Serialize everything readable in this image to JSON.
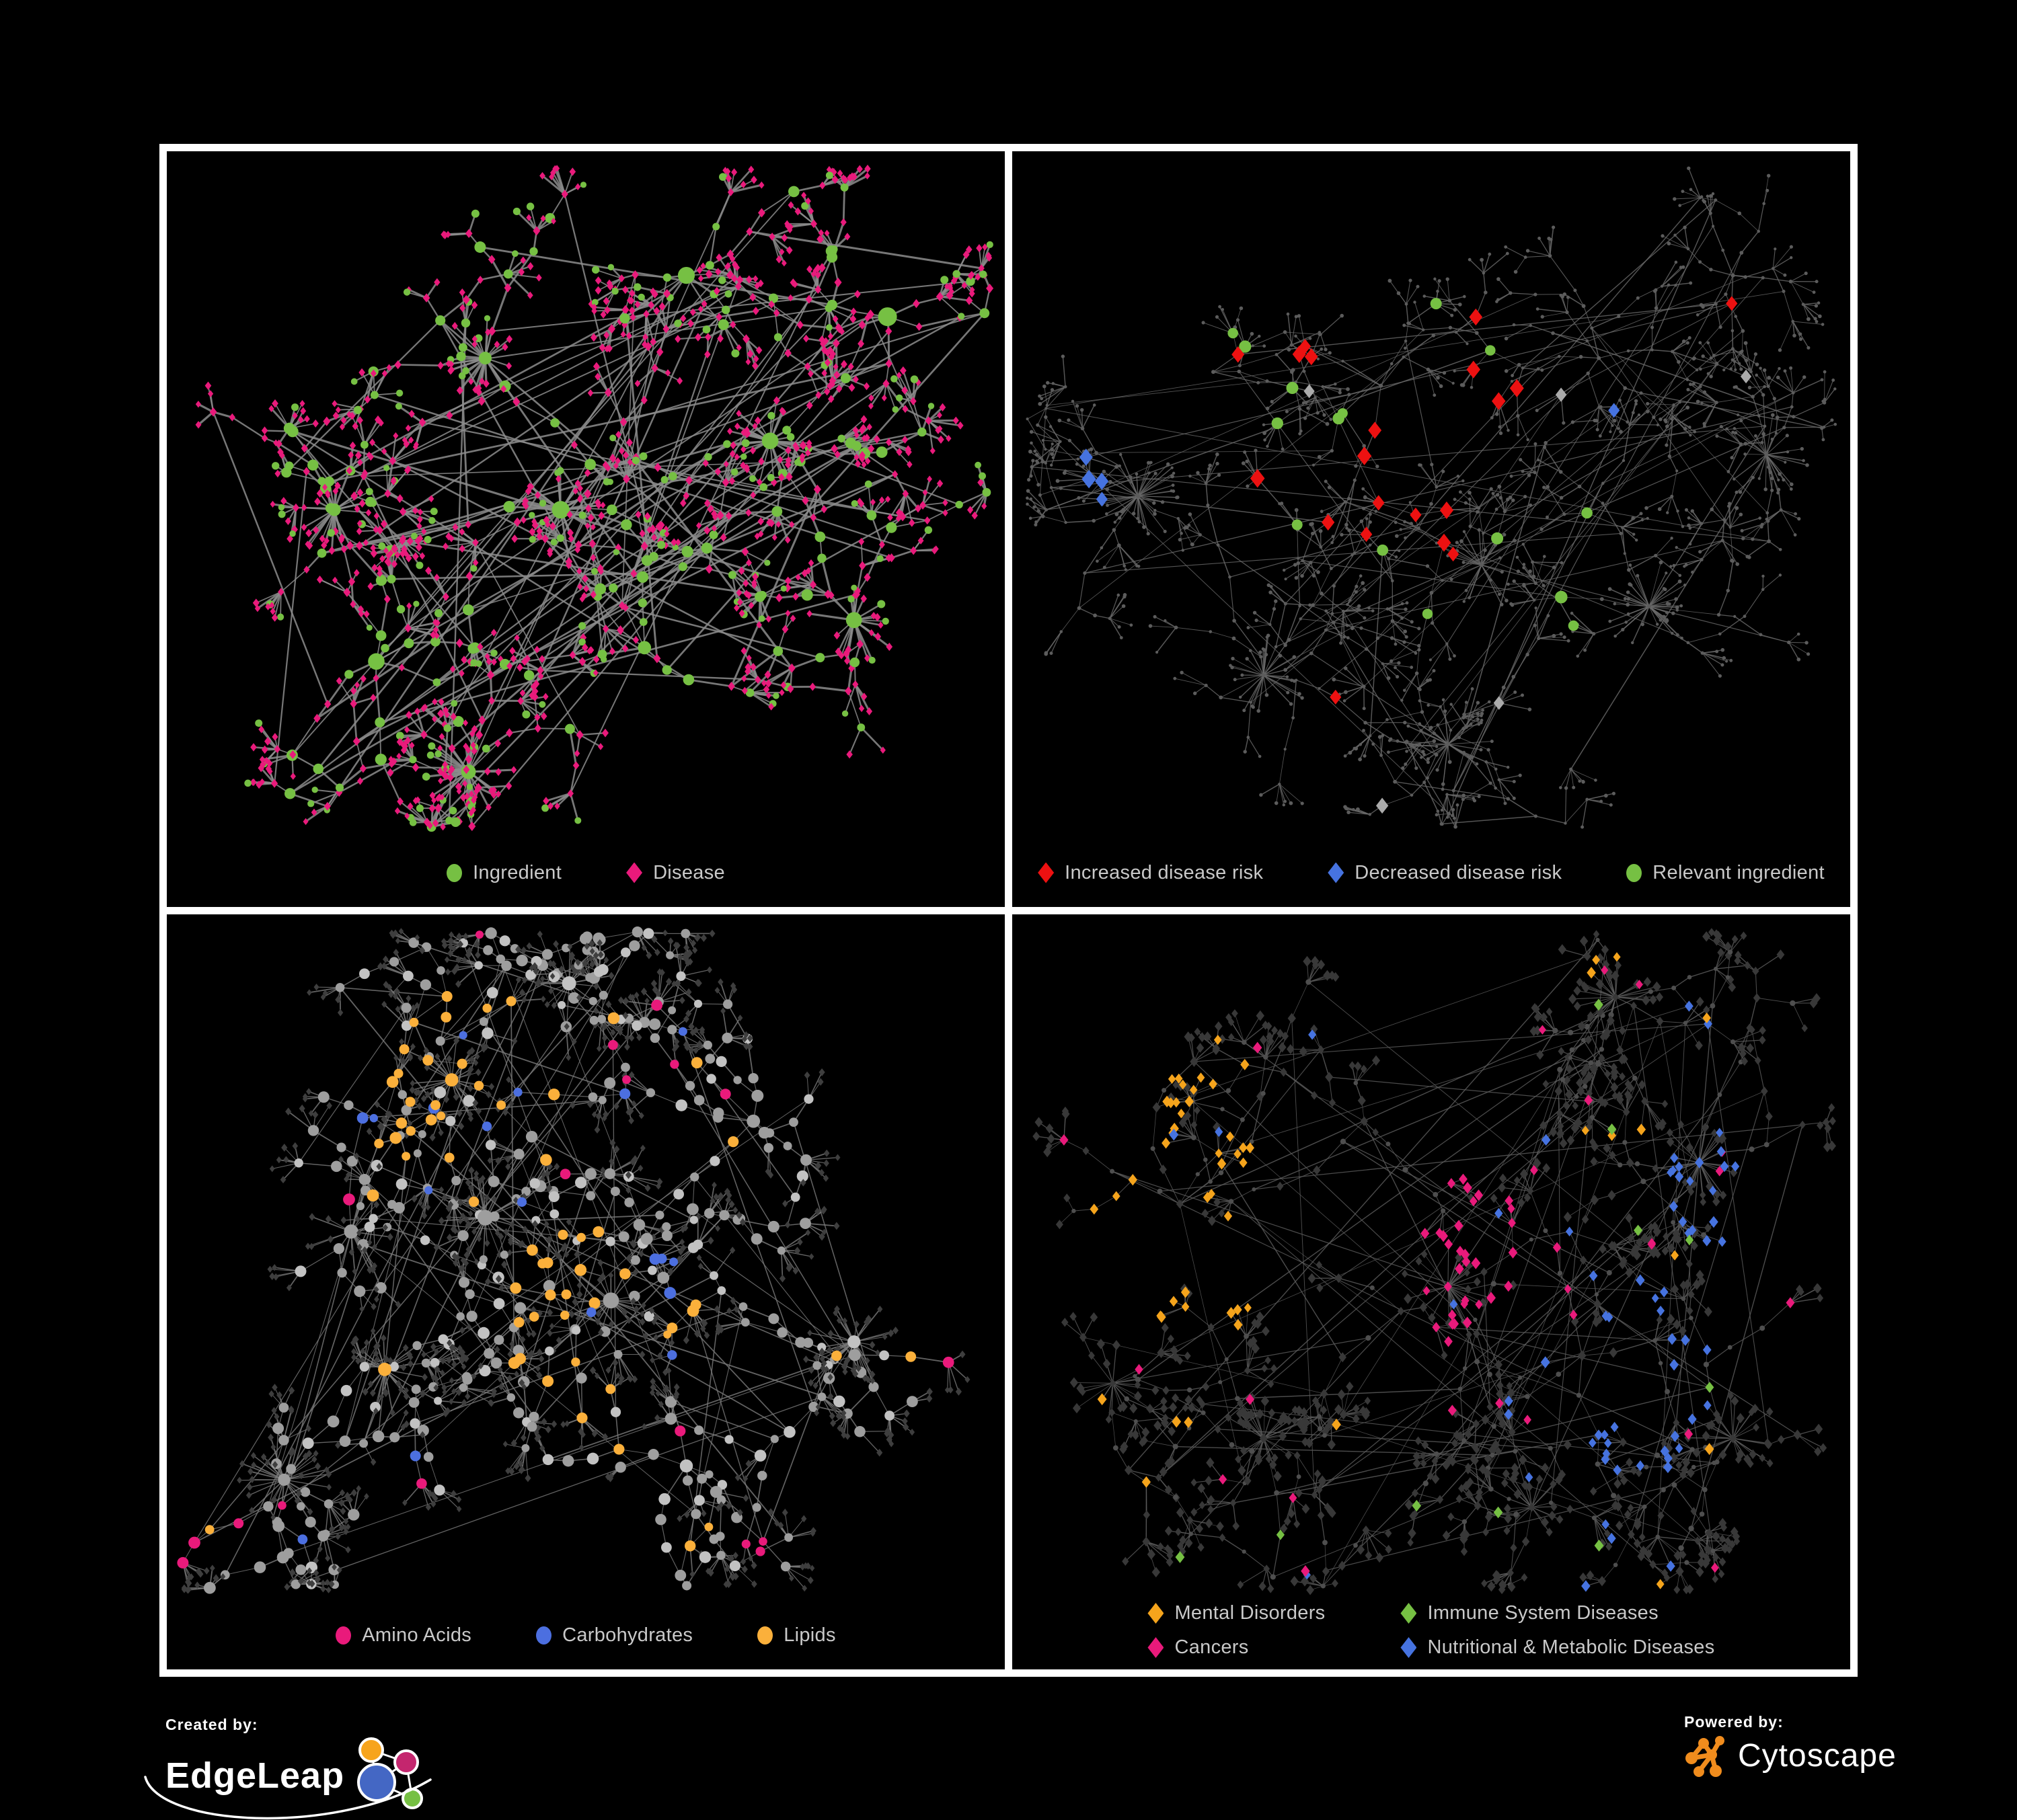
{
  "figure": {
    "background": "#000000",
    "frame": {
      "border_color": "#ffffff",
      "panel_background": "#000000"
    }
  },
  "panels": [
    {
      "id": "ingredient-disease",
      "style": "bipartite",
      "seed": 101,
      "legend_layout": "row",
      "legend": [
        {
          "shape": "circle",
          "color": "#76C043",
          "label": "Ingredient"
        },
        {
          "shape": "diamond",
          "color": "#E91A7B",
          "label": "Disease"
        }
      ],
      "colors": {
        "green": "#76C043",
        "pink": "#E91A7B"
      },
      "dim_fills": [],
      "edge": {
        "color": "#8C8C8C",
        "width": 2.3,
        "opacity": 0.85
      },
      "hubs": [
        [
          0.38,
          0.3,
          0.9
        ],
        [
          0.2,
          0.52,
          0.85
        ],
        [
          0.47,
          0.52,
          1
        ],
        [
          0.25,
          0.74,
          0.9
        ],
        [
          0.57,
          0.72,
          0.85
        ],
        [
          0.72,
          0.42,
          0.9
        ],
        [
          0.62,
          0.18,
          0.75
        ],
        [
          0.82,
          0.68,
          0.75
        ],
        [
          0.36,
          0.9,
          0.65
        ],
        [
          0.86,
          0.24,
          0.8
        ]
      ],
      "fanMax": 8,
      "burstP": 0.5,
      "cross": 90
    },
    {
      "id": "disease-risk",
      "style": "risk",
      "seed": 202,
      "legend_layout": "row",
      "legend": [
        {
          "shape": "diamond",
          "color": "#ED1111",
          "label": "Increased disease risk"
        },
        {
          "shape": "diamond",
          "color": "#4673E0",
          "label": "Decreased disease risk"
        },
        {
          "shape": "circle",
          "color": "#76C043",
          "label": "Relevant ingredient"
        }
      ],
      "colors": {
        "dim": "#5C5C5C",
        "red": "#ED1111",
        "blue": "#4673E0",
        "gray": "#ABABAB",
        "green": "#76C043"
      },
      "dim_fills": [
        "#5C5C5C"
      ],
      "edge": {
        "color": "#6A6A6A",
        "width": 1.15,
        "opacity": 0.8
      },
      "hubs": [
        [
          0.24,
          0.32,
          0.9
        ],
        [
          0.15,
          0.5,
          0.8
        ],
        [
          0.44,
          0.34,
          1
        ],
        [
          0.56,
          0.6,
          0.85
        ],
        [
          0.3,
          0.76,
          0.9
        ],
        [
          0.7,
          0.3,
          0.9
        ],
        [
          0.86,
          0.18,
          0.7
        ],
        [
          0.76,
          0.66,
          0.8
        ],
        [
          0.52,
          0.86,
          0.7
        ],
        [
          0.9,
          0.44,
          0.65
        ]
      ],
      "fanMax": 6,
      "burstP": 0.6,
      "cross": 70
    },
    {
      "id": "ingredient-classes",
      "style": "classes",
      "seed": 303,
      "legend_layout": "row",
      "legend": [
        {
          "shape": "circle",
          "color": "#E91A7B",
          "label": "Amino Acids"
        },
        {
          "shape": "circle",
          "color": "#4C6FE0",
          "label": "Carbohydrates"
        },
        {
          "shape": "circle",
          "color": "#FBB03B",
          "label": "Lipids"
        }
      ],
      "colors": {
        "gray": "#9E9E9E",
        "gray2": "#C2C2C2",
        "leaf": "#3E3E3E",
        "yellow": "#FBB03B",
        "blue": "#4C6FE0",
        "pink": "#E91A7B"
      },
      "dim_fills": [
        "#9E9E9E",
        "#C2C2C2",
        "#3E3E3E"
      ],
      "edge": {
        "color": "#7B7B7B",
        "width": 1.35,
        "opacity": 0.8
      },
      "centers": [
        [
          0.36,
          0.26
        ],
        [
          0.52,
          0.6
        ]
      ],
      "hubs": [
        [
          0.22,
          0.46,
          0.9
        ],
        [
          0.34,
          0.24,
          0.85
        ],
        [
          0.38,
          0.44,
          1
        ],
        [
          0.26,
          0.66,
          0.85
        ],
        [
          0.53,
          0.56,
          0.9
        ],
        [
          0.7,
          0.3,
          0.8
        ],
        [
          0.62,
          0.8,
          0.8
        ],
        [
          0.14,
          0.82,
          0.7
        ],
        [
          0.82,
          0.62,
          0.7
        ],
        [
          0.48,
          0.1,
          0.6
        ]
      ],
      "fanMax": 7,
      "burstP": 0.7,
      "cross": 70
    },
    {
      "id": "disease-categories",
      "style": "categories",
      "seed": 404,
      "legend_layout": "grid",
      "legend": [
        {
          "shape": "diamond",
          "color": "#F5A41C",
          "label": "Mental Disorders"
        },
        {
          "shape": "diamond",
          "color": "#76C043",
          "label": "Immune System Diseases"
        },
        {
          "shape": "diamond",
          "color": "#E91A7B",
          "label": "Cancers"
        },
        {
          "shape": "diamond",
          "color": "#4673E0",
          "label": "Nutritional & Metabolic Diseases"
        }
      ],
      "colors": {
        "dim": "#383838",
        "dot": "#4E4E4E",
        "orange": "#F5A41C",
        "pink": "#E91A7B",
        "blue": "#4673E0",
        "green": "#76C043"
      },
      "dim_fills": [
        "#383838",
        "#4E4E4E"
      ],
      "edge": {
        "color": "#5E5E5E",
        "width": 1.05,
        "opacity": 0.8
      },
      "clusters": [
        {
          "c": [
            0.2,
            0.42
          ],
          "r": 200,
          "p": 0.55,
          "color": "orange"
        },
        {
          "c": [
            0.53,
            0.56
          ],
          "r": 175,
          "p": 0.5,
          "color": "pink"
        },
        {
          "c": [
            0.73,
            0.66
          ],
          "r": 150,
          "p": 0.5,
          "color": "blue"
        },
        {
          "c": [
            0.87,
            0.4
          ],
          "r": 115,
          "p": 0.45,
          "color": "blue"
        }
      ],
      "hubs": [
        [
          0.2,
          0.42,
          1
        ],
        [
          0.42,
          0.3,
          0.9
        ],
        [
          0.52,
          0.54,
          1
        ],
        [
          0.68,
          0.64,
          0.85
        ],
        [
          0.82,
          0.36,
          0.8
        ],
        [
          0.3,
          0.76,
          0.85
        ],
        [
          0.62,
          0.86,
          0.7
        ],
        [
          0.86,
          0.76,
          0.7
        ],
        [
          0.72,
          0.12,
          0.7
        ],
        [
          0.12,
          0.68,
          0.7
        ]
      ],
      "fanMax": 8,
      "burstP": 0.8,
      "cross": 80
    }
  ],
  "branding": {
    "created_by": "Created by:",
    "edgeleap": "EdgeLeap",
    "powered_by": "Powered by:",
    "cytoscape": "Cytoscape",
    "edgeleap_node_colors": [
      "#F7A41C",
      "#C4266E",
      "#4467C4",
      "#76C043"
    ],
    "cytoscape_orange": "#F08C1D"
  }
}
